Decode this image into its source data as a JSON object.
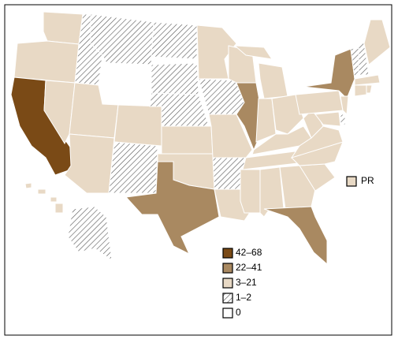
{
  "legend": {
    "items": [
      {
        "label": "42–68",
        "color": "#7a4a16"
      },
      {
        "label": "22–41",
        "color": "#a98961"
      },
      {
        "label": "3–21",
        "color": "#e8d9c5"
      },
      {
        "label": "1–2",
        "color": "#ffffff",
        "hatch": true
      },
      {
        "label": "0",
        "color": "#ffffff"
      }
    ]
  },
  "territory": {
    "label": "PR"
  }
}
